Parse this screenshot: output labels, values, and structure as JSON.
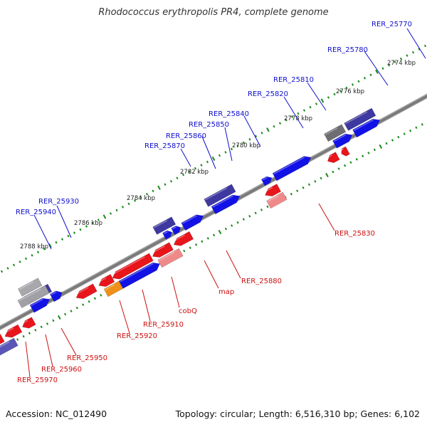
{
  "title": "Rhodococcus erythropolis PR4, complete genome",
  "footer": {
    "accession": "Accession: NC_012490",
    "summary": "Topology: circular; Length: 6,516,310 bp; Genes: 6,102"
  },
  "colors": {
    "forward_gene": "#1212e6",
    "reverse_gene": "#e8151b",
    "forward_label": "#1010cc",
    "reverse_label": "#cc1010",
    "backbone": "#8a8a8a",
    "tick": "#1a8a1a"
  },
  "kbp_labels": [
    "2788 kbp",
    "2786 kbp",
    "2784 kbp",
    "2782 kbp",
    "2780 kbp",
    "2778 kbp",
    "2776 kbp",
    "2774 kbp"
  ],
  "genes": {
    "forward": [
      "RER_25770",
      "RER_25780",
      "RER_25810",
      "RER_25820",
      "RER_25840",
      "RER_25850",
      "RER_25860",
      "RER_25870",
      "RER_25930",
      "RER_25940"
    ],
    "reverse": [
      "RER_25830",
      "RER_25880",
      "map",
      "cobQ",
      "RER_25910",
      "RER_25920",
      "RER_25950",
      "RER_25960",
      "RER_25970"
    ]
  }
}
